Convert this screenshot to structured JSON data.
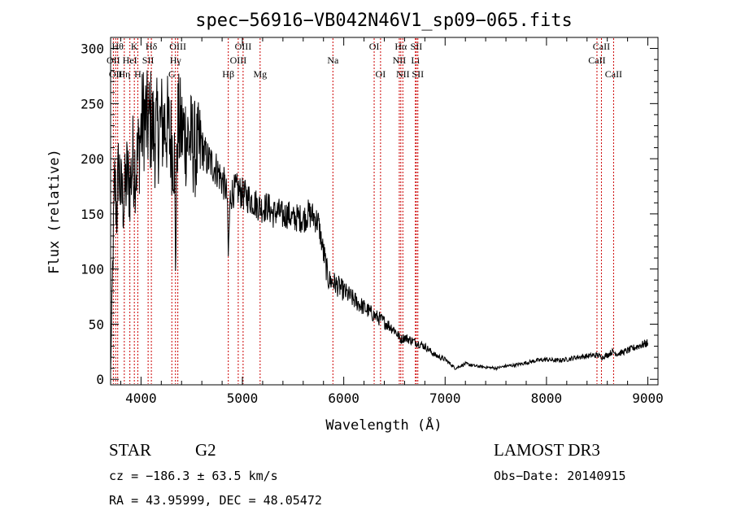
{
  "chart_data": {
    "type": "line",
    "title": "spec−56916−VB042N46V1_sp09−065.fits",
    "xlabel": "Wavelength (Å)",
    "ylabel": "Flux (relative)",
    "xlim": [
      3700,
      9100
    ],
    "ylim": [
      -5,
      310
    ],
    "xticks": [
      4000,
      5000,
      6000,
      7000,
      8000,
      9000
    ],
    "yticks": [
      0,
      50,
      100,
      150,
      200,
      250,
      300
    ],
    "xtick_labels": [
      "4000",
      "5000",
      "6000",
      "7000",
      "8000",
      "9000"
    ],
    "ytick_labels": [
      "0",
      "50",
      "100",
      "150",
      "200",
      "250",
      "300"
    ],
    "series": [
      {
        "name": "flux",
        "color": "#000000",
        "x": [
          3700,
          3720,
          3740,
          3760,
          3780,
          3800,
          3830,
          3860,
          3890,
          3920,
          3950,
          3980,
          4000,
          4030,
          4060,
          4100,
          4130,
          4160,
          4200,
          4250,
          4300,
          4330,
          4340,
          4360,
          4400,
          4450,
          4500,
          4550,
          4600,
          4650,
          4700,
          4750,
          4800,
          4830,
          4850,
          4861,
          4880,
          4900,
          4950,
          5000,
          5050,
          5100,
          5150,
          5200,
          5250,
          5300,
          5350,
          5400,
          5450,
          5500,
          5550,
          5600,
          5650,
          5700,
          5750,
          5800,
          5850,
          5900,
          5950,
          6000,
          6100,
          6200,
          6300,
          6400,
          6500,
          6563,
          6600,
          6700,
          6800,
          6900,
          7000,
          7100,
          7200,
          7300,
          7400,
          7500,
          7600,
          7700,
          7800,
          7900,
          8000,
          8100,
          8200,
          8300,
          8400,
          8500,
          8550,
          8600,
          8650,
          8700,
          8800,
          8900,
          9000
        ],
        "y": [
          5,
          100,
          180,
          150,
          195,
          170,
          160,
          185,
          175,
          200,
          190,
          210,
          225,
          240,
          230,
          235,
          220,
          225,
          230,
          232,
          215,
          200,
          105,
          230,
          225,
          220,
          215,
          205,
          210,
          200,
          195,
          190,
          180,
          175,
          165,
          112,
          165,
          170,
          172,
          168,
          165,
          162,
          158,
          155,
          157,
          150,
          152,
          148,
          150,
          145,
          147,
          145,
          150,
          148,
          142,
          115,
          90,
          88,
          84,
          80,
          72,
          65,
          58,
          52,
          45,
          36,
          38,
          34,
          30,
          22,
          18,
          10,
          14,
          12,
          11,
          10,
          12,
          13,
          15,
          17,
          18,
          17,
          18,
          20,
          21,
          22,
          20,
          22,
          25,
          23,
          26,
          30,
          33
        ]
      }
    ],
    "lines": [
      {
        "x": 3727,
        "label": "OII",
        "row": 2
      },
      {
        "x": 3750,
        "label": "OII",
        "row": 3
      },
      {
        "x": 3770,
        "label": "Hθ",
        "row": 1
      },
      {
        "x": 3835,
        "label": "Hη",
        "row": 3
      },
      {
        "x": 3890,
        "label": "HeI",
        "row": 2
      },
      {
        "x": 3934,
        "label": "K",
        "row": 1
      },
      {
        "x": 3968,
        "label": "H",
        "row": 3
      },
      {
        "x": 4070,
        "label": "SII",
        "row": 2
      },
      {
        "x": 4102,
        "label": "Hδ",
        "row": 1
      },
      {
        "x": 4304,
        "label": "G",
        "row": 3
      },
      {
        "x": 4340,
        "label": "Hγ",
        "row": 2
      },
      {
        "x": 4363,
        "label": "OIII",
        "row": 1
      },
      {
        "x": 4861,
        "label": "Hβ",
        "row": 3
      },
      {
        "x": 4959,
        "label": "OIII",
        "row": 2
      },
      {
        "x": 5007,
        "label": "OIII",
        "row": 1
      },
      {
        "x": 5175,
        "label": "Mg",
        "row": 3
      },
      {
        "x": 5893,
        "label": "Na",
        "row": 2
      },
      {
        "x": 6300,
        "label": "OI",
        "row": 1
      },
      {
        "x": 6363,
        "label": "OI",
        "row": 3
      },
      {
        "x": 6548,
        "label": "NII",
        "row": 2
      },
      {
        "x": 6563,
        "label": "Hα",
        "row": 1
      },
      {
        "x": 6583,
        "label": "NII",
        "row": 3
      },
      {
        "x": 6707,
        "label": "Li",
        "row": 2
      },
      {
        "x": 6716,
        "label": "SII",
        "row": 1
      },
      {
        "x": 6731,
        "label": "SII",
        "row": 3
      },
      {
        "x": 8498,
        "label": "CaII",
        "row": 2
      },
      {
        "x": 8542,
        "label": "CaII",
        "row": 1
      },
      {
        "x": 8662,
        "label": "CaII",
        "row": 3
      }
    ]
  },
  "info": {
    "class": "STAR",
    "subclass": "G2",
    "survey": "LAMOST DR3",
    "cz": "cz = −186.3 ± 63.5 km/s",
    "obs_date": "Obs−Date: 20140915",
    "radec": "RA =  43.95999, DEC =  48.05472"
  },
  "colors": {
    "line_marker": "#cc0000",
    "spectrum": "#000000",
    "axis": "#000000"
  }
}
